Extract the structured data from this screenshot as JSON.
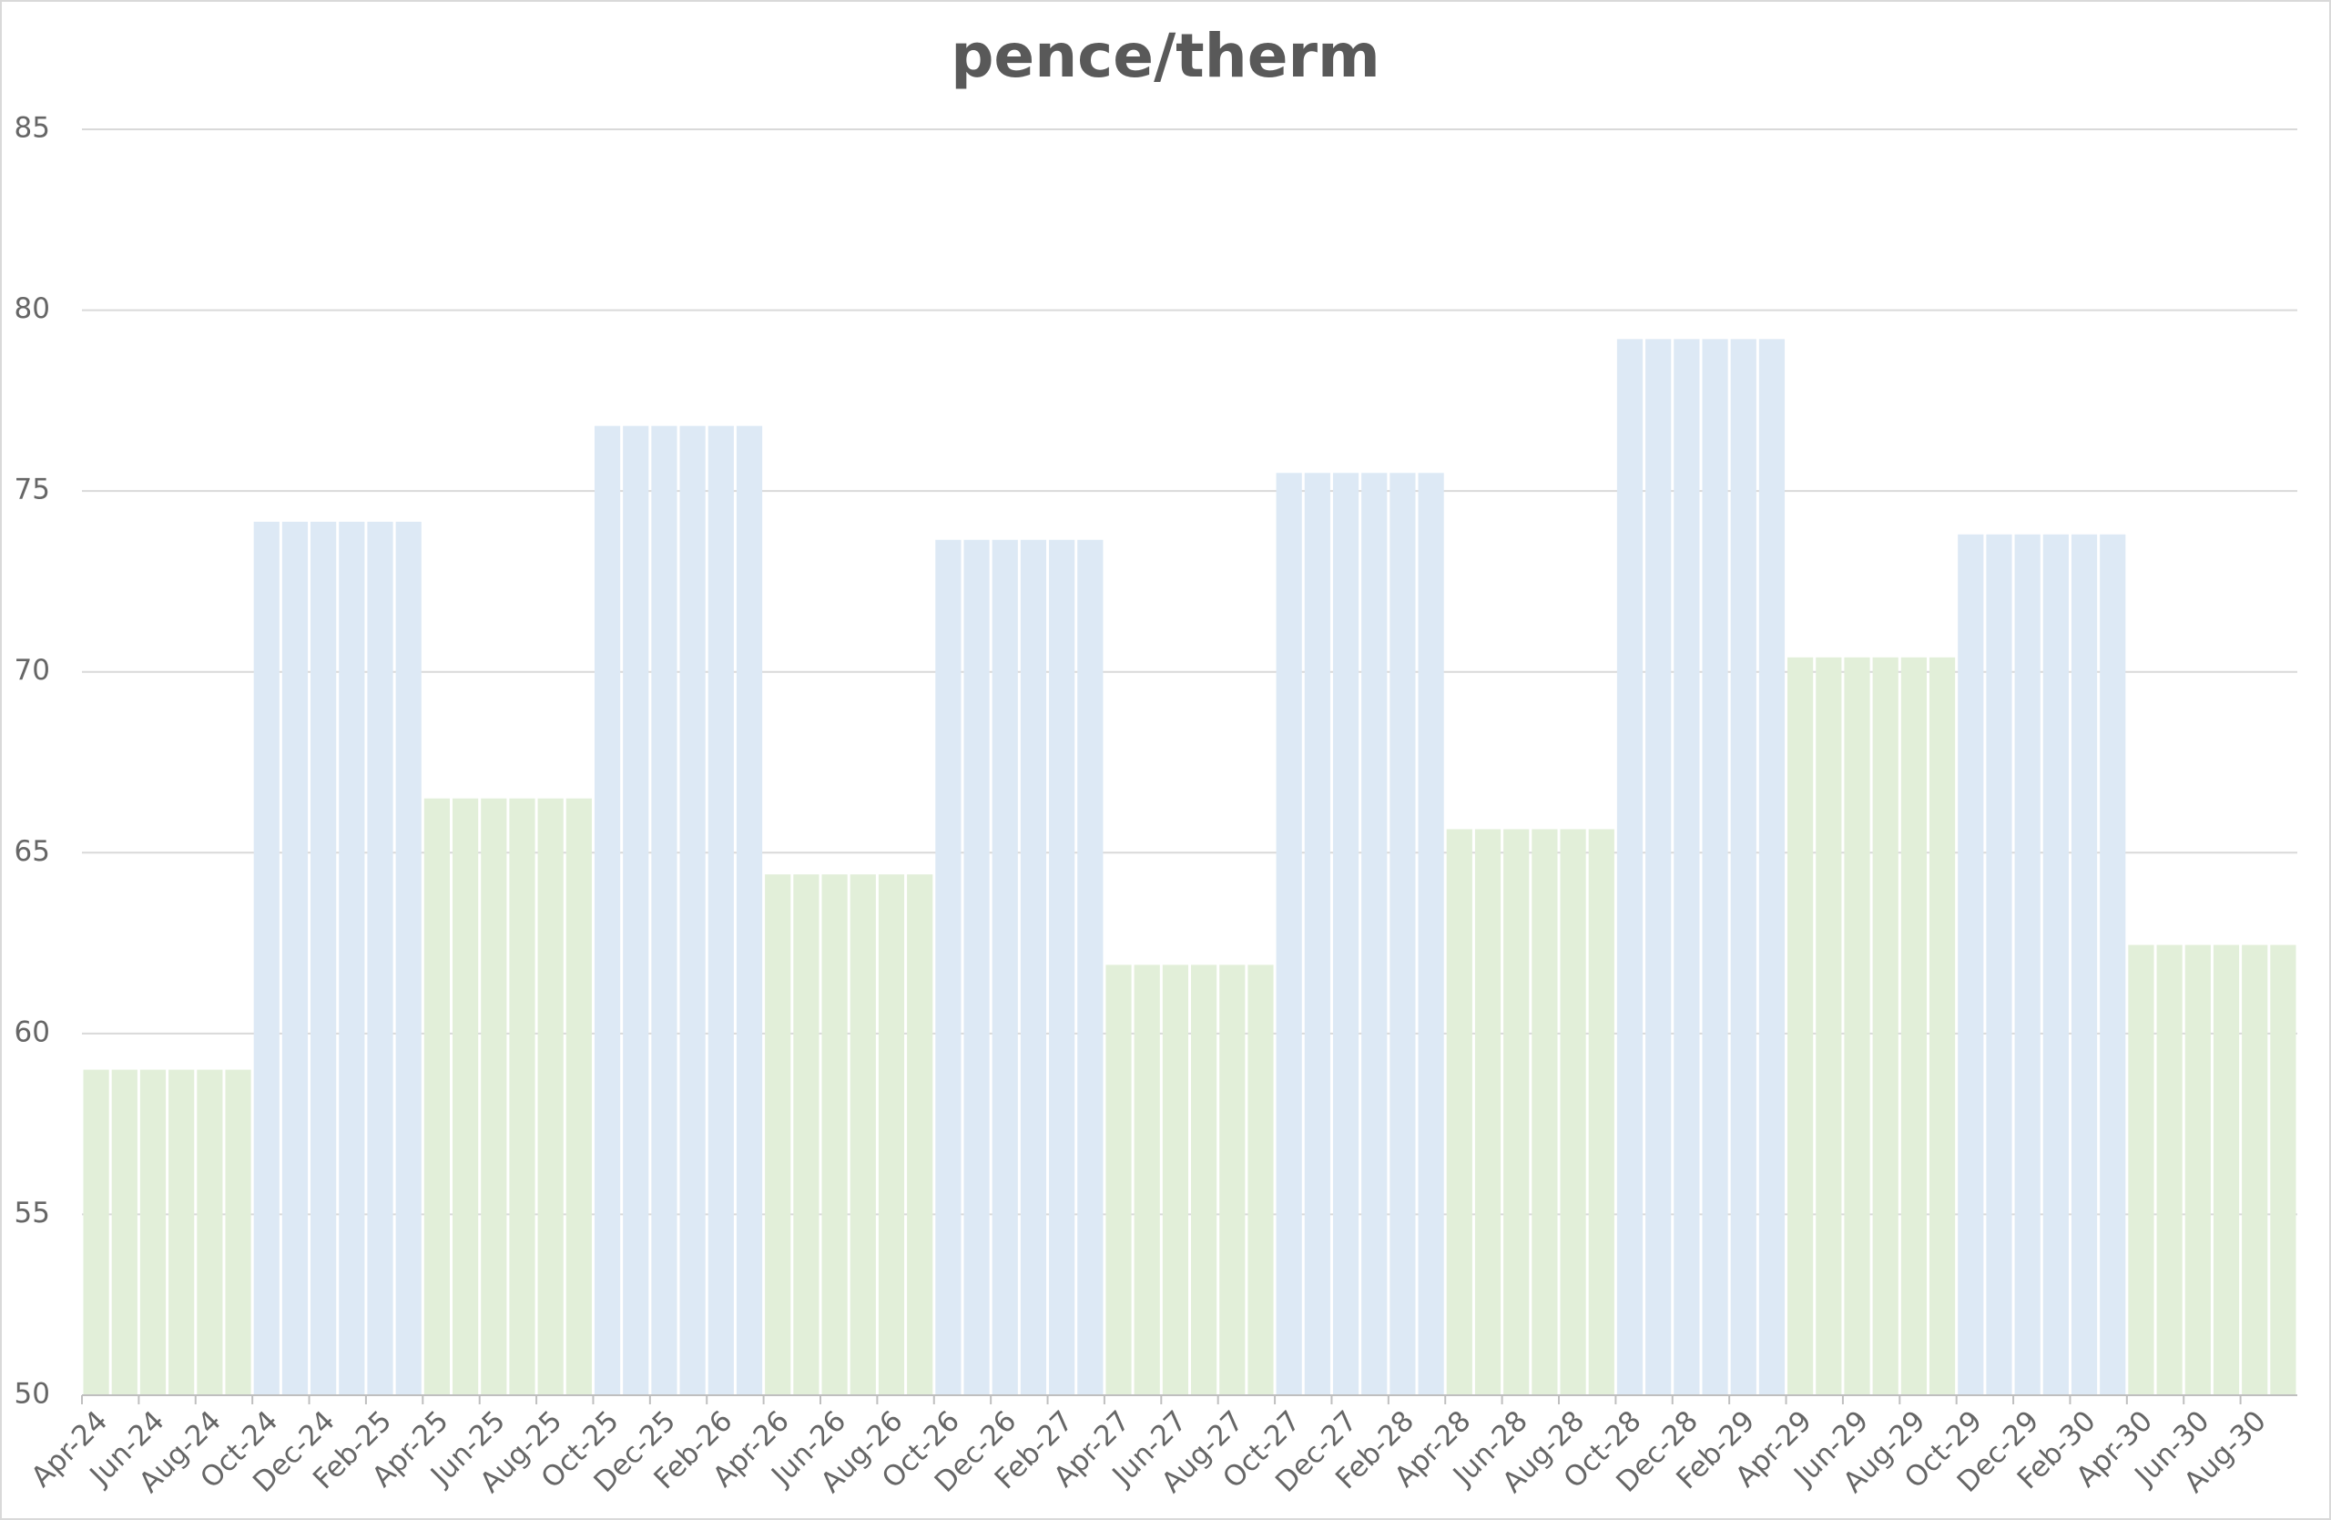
{
  "chart_data": {
    "type": "bar",
    "title": "pence/therm",
    "categories": [
      "Apr-24",
      null,
      "Jun-24",
      null,
      "Aug-24",
      null,
      "Oct-24",
      null,
      "Dec-24",
      null,
      "Feb-25",
      null,
      "Apr-25",
      null,
      "Jun-25",
      null,
      "Aug-25",
      null,
      "Oct-25",
      null,
      "Dec-25",
      null,
      "Feb-26",
      null,
      "Apr-26",
      null,
      "Jun-26",
      null,
      "Aug-26",
      null,
      "Oct-26",
      null,
      "Dec-26",
      null,
      "Feb-27",
      null,
      "Apr-27",
      null,
      "Jun-27",
      null,
      "Aug-27",
      null,
      "Oct-27",
      null,
      "Dec-27",
      null,
      "Feb-28",
      null,
      "Apr-28",
      null,
      "Jun-28",
      null,
      "Aug-28",
      null,
      "Oct-28",
      null,
      "Dec-28",
      null,
      "Feb-29",
      null,
      "Apr-29",
      null,
      "Jun-29",
      null,
      "Aug-29",
      null,
      "Oct-29",
      null,
      "Dec-29",
      null,
      "Feb-30",
      null,
      "Apr-30",
      null,
      "Jun-30",
      null,
      "Aug-30",
      null
    ],
    "values": [
      59.0,
      59.0,
      59.0,
      59.0,
      59.0,
      59.0,
      74.15,
      74.15,
      74.15,
      74.15,
      74.15,
      74.15,
      66.5,
      66.5,
      66.5,
      66.5,
      66.5,
      66.5,
      76.8,
      76.8,
      76.8,
      76.8,
      76.8,
      76.8,
      64.4,
      64.4,
      64.4,
      64.4,
      64.4,
      64.4,
      73.65,
      73.65,
      73.65,
      73.65,
      73.65,
      73.65,
      61.9,
      61.9,
      61.9,
      61.9,
      61.9,
      61.9,
      75.5,
      75.5,
      75.5,
      75.5,
      75.5,
      75.5,
      65.65,
      65.65,
      65.65,
      65.65,
      65.65,
      65.65,
      79.2,
      79.2,
      79.2,
      79.2,
      79.2,
      79.2,
      70.4,
      70.4,
      70.4,
      70.4,
      70.4,
      70.4,
      73.8,
      73.8,
      73.8,
      73.8,
      73.8,
      73.8,
      62.45,
      62.45,
      62.45,
      62.45,
      62.45,
      62.45
    ],
    "colors": [
      "#e2efd9",
      "#e2efd9",
      "#e2efd9",
      "#e2efd9",
      "#e2efd9",
      "#e2efd9",
      "#dde9f5",
      "#dde9f5",
      "#dde9f5",
      "#dde9f5",
      "#dde9f5",
      "#dde9f5",
      "#e2efd9",
      "#e2efd9",
      "#e2efd9",
      "#e2efd9",
      "#e2efd9",
      "#e2efd9",
      "#dde9f5",
      "#dde9f5",
      "#dde9f5",
      "#dde9f5",
      "#dde9f5",
      "#dde9f5",
      "#e2efd9",
      "#e2efd9",
      "#e2efd9",
      "#e2efd9",
      "#e2efd9",
      "#e2efd9",
      "#dde9f5",
      "#dde9f5",
      "#dde9f5",
      "#dde9f5",
      "#dde9f5",
      "#dde9f5",
      "#e2efd9",
      "#e2efd9",
      "#e2efd9",
      "#e2efd9",
      "#e2efd9",
      "#e2efd9",
      "#dde9f5",
      "#dde9f5",
      "#dde9f5",
      "#dde9f5",
      "#dde9f5",
      "#dde9f5",
      "#e2efd9",
      "#e2efd9",
      "#e2efd9",
      "#e2efd9",
      "#e2efd9",
      "#e2efd9",
      "#dde9f5",
      "#dde9f5",
      "#dde9f5",
      "#dde9f5",
      "#dde9f5",
      "#dde9f5",
      "#e2efd9",
      "#e2efd9",
      "#e2efd9",
      "#e2efd9",
      "#e2efd9",
      "#e2efd9",
      "#dde9f5",
      "#dde9f5",
      "#dde9f5",
      "#dde9f5",
      "#dde9f5",
      "#dde9f5",
      "#e2efd9",
      "#e2efd9",
      "#e2efd9",
      "#e2efd9",
      "#e2efd9",
      "#e2efd9"
    ],
    "ylim": [
      50,
      85
    ],
    "yticks": [
      50,
      55,
      60,
      65,
      70,
      75,
      80,
      85
    ],
    "grid": true
  }
}
